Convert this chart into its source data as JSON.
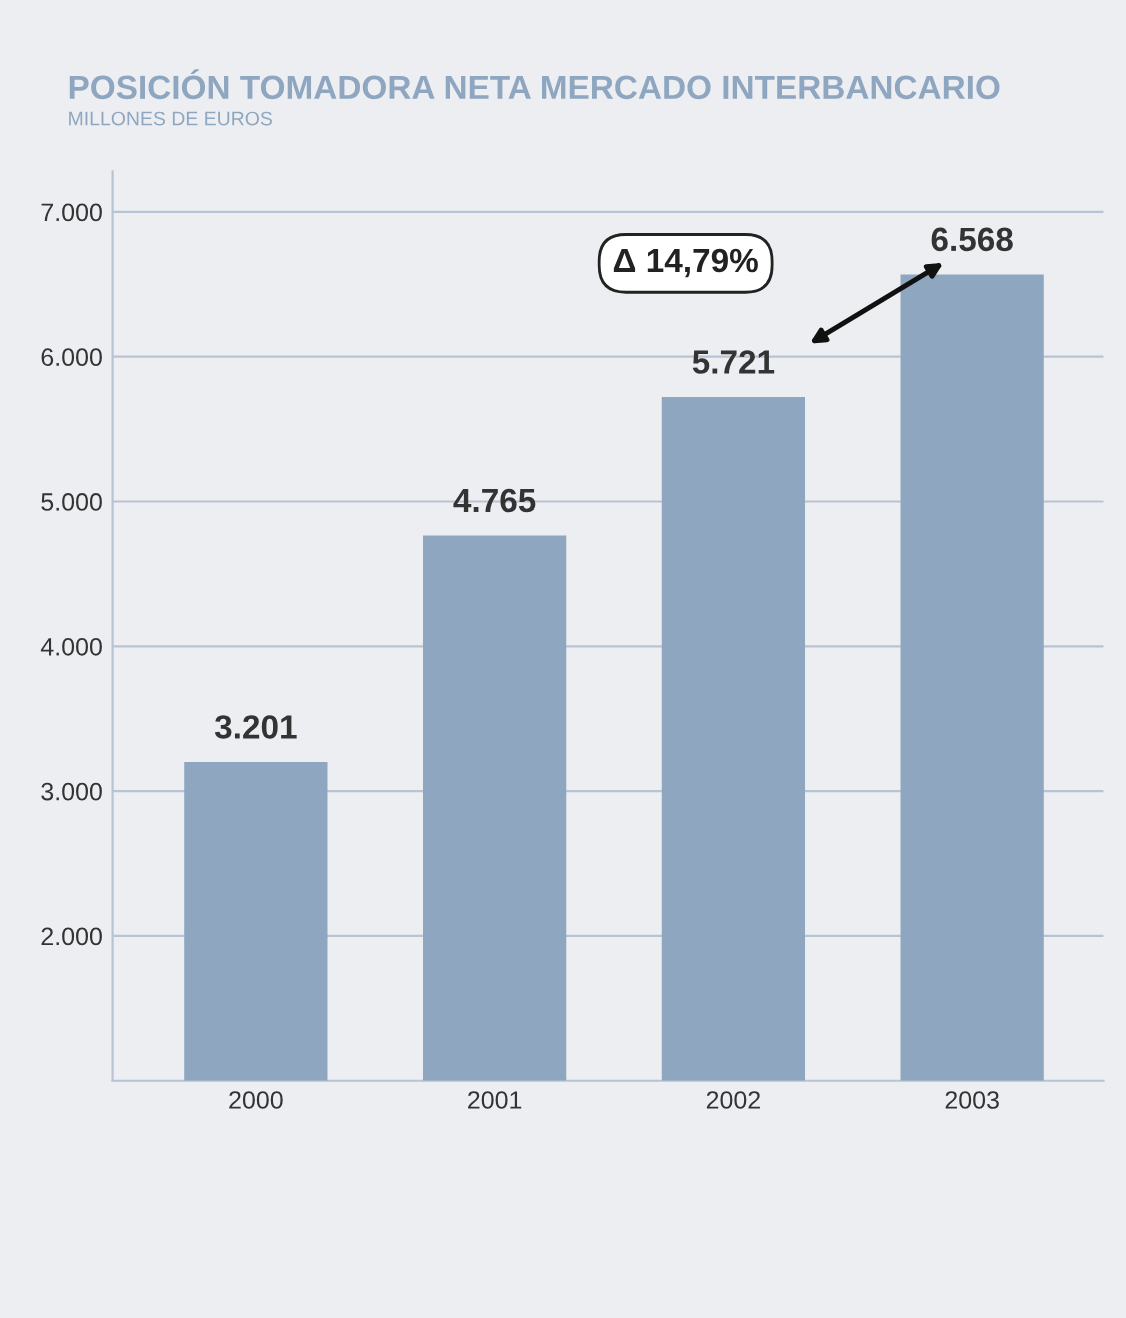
{
  "chart_data": {
    "type": "bar",
    "title": "POSICIÓN TOMADORA NETA MERCADO INTERBANCARIO",
    "subtitle": "MILLONES DE EUROS",
    "categories": [
      "2000",
      "2001",
      "2002",
      "2003"
    ],
    "values": [
      3201,
      4765,
      5721,
      6568
    ],
    "value_labels": [
      "3.201",
      "4.765",
      "5.721",
      "6.568"
    ],
    "color": "#8fa6c0",
    "ylim": [
      1000,
      7000
    ],
    "yticks": [
      {
        "value": 2000,
        "label": "2.000"
      },
      {
        "value": 3000,
        "label": "3.000"
      },
      {
        "value": 4000,
        "label": "4.000"
      },
      {
        "value": 5000,
        "label": "5.000"
      },
      {
        "value": 6000,
        "label": "6.000"
      },
      {
        "value": 7000,
        "label": "7.000"
      }
    ],
    "grid": "y",
    "annotations": [
      "Δ 14,79%"
    ]
  }
}
